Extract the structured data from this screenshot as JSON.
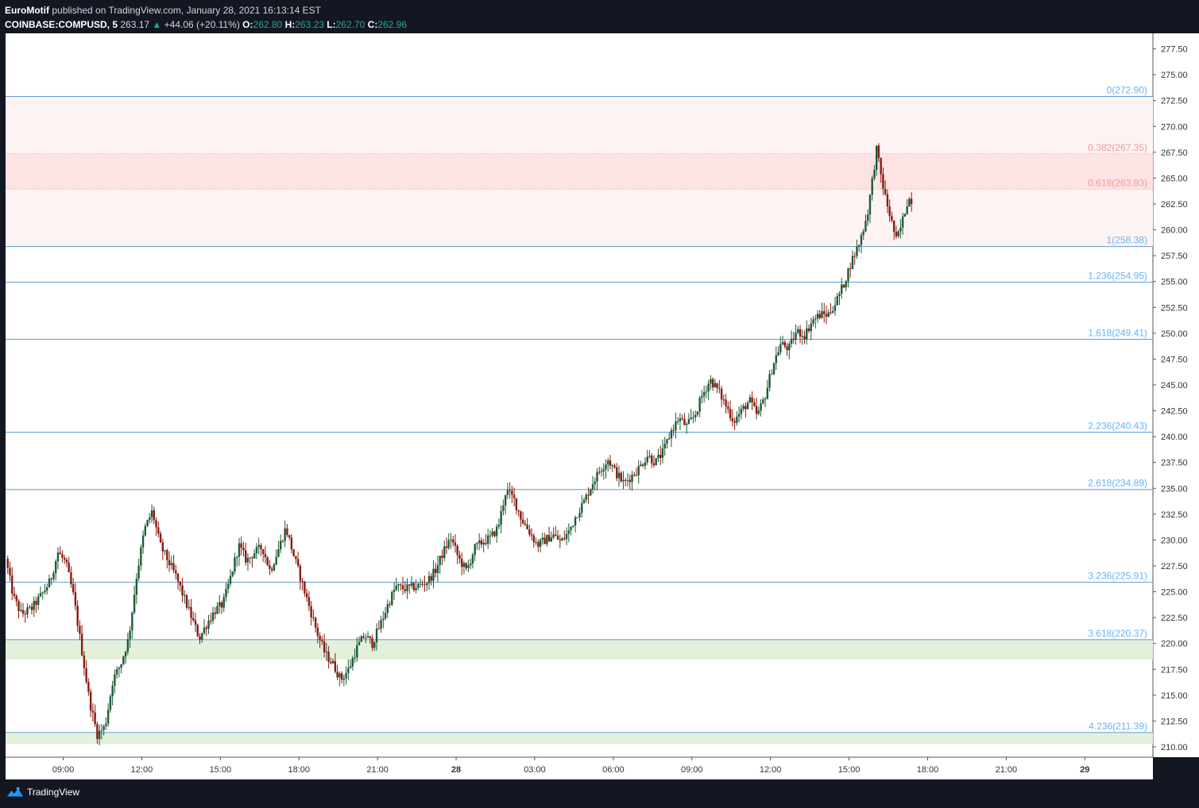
{
  "header": {
    "publisher": "EuroMotif",
    "published_text": "published on TradingView.com, January 28, 2021 16:13:14 EST",
    "symbol": "COINBASE:COMPUSD, 5",
    "last": "263.17",
    "change": "+44.06 (+20.11%)",
    "o_label": "O:",
    "o_value": "262.80",
    "h_label": "H:",
    "h_value": "263.23",
    "l_label": "L:",
    "l_value": "262.70",
    "c_label": "C:",
    "c_value": "262.96"
  },
  "footer": {
    "brand": "TradingView"
  },
  "colors": {
    "background": "#131722",
    "plot": "#ffffff",
    "fib_line": "#5b9bd5",
    "fib_label": "#64b5f6",
    "golden_label": "#ef9a9a",
    "golden_zone": "#fde3e3",
    "red_zone": "#fef3f3",
    "green_zone": "#e3f0dc",
    "candle_up": "#1e5a35",
    "candle_down": "#8b1a10"
  },
  "chart_data": {
    "type": "candlestick",
    "y_range": [
      209,
      279
    ],
    "y_ticks": [
      "277.50",
      "275.00",
      "272.50",
      "270.00",
      "267.50",
      "265.00",
      "262.50",
      "260.00",
      "257.50",
      "255.00",
      "252.50",
      "250.00",
      "247.50",
      "245.00",
      "242.50",
      "240.00",
      "237.50",
      "235.00",
      "232.50",
      "230.00",
      "227.50",
      "225.00",
      "222.50",
      "220.00",
      "217.50",
      "215.00",
      "212.50",
      "210.00"
    ],
    "x_ticks": [
      {
        "label": "09:00",
        "t": 9
      },
      {
        "label": "12:00",
        "t": 12
      },
      {
        "label": "15:00",
        "t": 15
      },
      {
        "label": "18:00",
        "t": 18
      },
      {
        "label": "21:00",
        "t": 21
      },
      {
        "label": "28",
        "t": 24
      },
      {
        "label": "03:00",
        "t": 27
      },
      {
        "label": "06:00",
        "t": 30
      },
      {
        "label": "09:00",
        "t": 33
      },
      {
        "label": "12:00",
        "t": 36
      },
      {
        "label": "15:00",
        "t": 39
      },
      {
        "label": "18:00",
        "t": 42
      },
      {
        "label": "21:00",
        "t": 45
      },
      {
        "label": "29",
        "t": 48
      }
    ],
    "x_range": [
      6.8,
      50.6
    ],
    "fib_levels": [
      {
        "label": "0(272.90)",
        "value": 272.9,
        "style": "solid",
        "kind": "blue"
      },
      {
        "label": "0.382(267.35)",
        "value": 267.35,
        "style": "dotted",
        "kind": "pink"
      },
      {
        "label": "0.618(263.93)",
        "value": 263.93,
        "style": "dotted",
        "kind": "pink"
      },
      {
        "label": "1(258.38)",
        "value": 258.38,
        "style": "solid",
        "kind": "blue"
      },
      {
        "label": "1.236(254.95)",
        "value": 254.95,
        "style": "solid",
        "kind": "blue"
      },
      {
        "label": "1.618(249.41)",
        "value": 249.41,
        "style": "solid",
        "kind": "blue"
      },
      {
        "label": "2.236(240.43)",
        "value": 240.43,
        "style": "solid",
        "kind": "blue"
      },
      {
        "label": "2.618(234.89)",
        "value": 234.89,
        "style": "solid",
        "kind": "blue"
      },
      {
        "label": "3.236(225.91)",
        "value": 225.91,
        "style": "solid",
        "kind": "blue"
      },
      {
        "label": "3.618(220.37)",
        "value": 220.37,
        "style": "solid",
        "kind": "blue"
      },
      {
        "label": "4.236(211.39)",
        "value": 211.39,
        "style": "solid",
        "kind": "blue"
      }
    ],
    "zones": [
      {
        "from": 258.38,
        "to": 272.9,
        "kind": "red_zone"
      },
      {
        "from": 263.93,
        "to": 267.35,
        "kind": "golden_zone"
      },
      {
        "from": 218.45,
        "to": 220.37,
        "kind": "green_zone"
      },
      {
        "from": 210.3,
        "to": 211.39,
        "kind": "green_zone"
      }
    ],
    "price_path": [
      [
        6.8,
        228.2
      ],
      [
        7.1,
        224.5
      ],
      [
        7.4,
        222.8
      ],
      [
        7.8,
        223.4
      ],
      [
        8.2,
        224.8
      ],
      [
        8.5,
        226.0
      ],
      [
        8.8,
        228.8
      ],
      [
        9.1,
        227.8
      ],
      [
        9.4,
        224.5
      ],
      [
        9.7,
        219.5
      ],
      [
        10.0,
        214.5
      ],
      [
        10.3,
        211.2
      ],
      [
        10.6,
        212.0
      ],
      [
        10.9,
        216.5
      ],
      [
        11.2,
        218.0
      ],
      [
        11.5,
        220.5
      ],
      [
        11.8,
        226.5
      ],
      [
        12.1,
        231.0
      ],
      [
        12.4,
        232.8
      ],
      [
        12.7,
        229.5
      ],
      [
        13.0,
        228.0
      ],
      [
        13.3,
        226.5
      ],
      [
        13.6,
        224.5
      ],
      [
        13.9,
        222.5
      ],
      [
        14.2,
        220.5
      ],
      [
        14.5,
        222.0
      ],
      [
        14.8,
        223.2
      ],
      [
        15.1,
        223.8
      ],
      [
        15.4,
        226.5
      ],
      [
        15.7,
        229.5
      ],
      [
        16.0,
        228.0
      ],
      [
        16.3,
        228.8
      ],
      [
        16.6,
        229.3
      ],
      [
        16.9,
        227.0
      ],
      [
        17.2,
        229.0
      ],
      [
        17.5,
        231.2
      ],
      [
        17.8,
        228.5
      ],
      [
        18.1,
        226.0
      ],
      [
        18.4,
        223.5
      ],
      [
        18.7,
        221.0
      ],
      [
        19.0,
        219.0
      ],
      [
        19.3,
        218.0
      ],
      [
        19.6,
        216.5
      ],
      [
        19.9,
        217.5
      ],
      [
        20.2,
        219.5
      ],
      [
        20.5,
        220.8
      ],
      [
        20.8,
        220.0
      ],
      [
        21.1,
        221.8
      ],
      [
        21.4,
        223.8
      ],
      [
        21.7,
        225.5
      ],
      [
        22.0,
        225.3
      ],
      [
        22.3,
        225.4
      ],
      [
        22.6,
        225.6
      ],
      [
        22.9,
        226.0
      ],
      [
        23.2,
        227.0
      ],
      [
        23.5,
        228.8
      ],
      [
        23.8,
        230.2
      ],
      [
        24.1,
        228.2
      ],
      [
        24.4,
        227.0
      ],
      [
        24.7,
        229.2
      ],
      [
        25.0,
        229.8
      ],
      [
        25.3,
        230.2
      ],
      [
        25.6,
        231.2
      ],
      [
        25.9,
        234.8
      ],
      [
        26.2,
        234.0
      ],
      [
        26.5,
        232.0
      ],
      [
        26.8,
        230.8
      ],
      [
        27.1,
        229.5
      ],
      [
        27.4,
        230.0
      ],
      [
        27.7,
        230.5
      ],
      [
        28.0,
        229.8
      ],
      [
        28.3,
        230.8
      ],
      [
        28.6,
        232.5
      ],
      [
        28.9,
        233.8
      ],
      [
        29.2,
        235.5
      ],
      [
        29.5,
        236.8
      ],
      [
        29.8,
        237.8
      ],
      [
        30.1,
        236.5
      ],
      [
        30.4,
        235.5
      ],
      [
        30.7,
        236.2
      ],
      [
        31.0,
        237.0
      ],
      [
        31.3,
        238.2
      ],
      [
        31.6,
        237.5
      ],
      [
        31.9,
        238.5
      ],
      [
        32.2,
        240.5
      ],
      [
        32.5,
        241.8
      ],
      [
        32.8,
        241.0
      ],
      [
        33.1,
        242.0
      ],
      [
        33.4,
        244.0
      ],
      [
        33.7,
        245.5
      ],
      [
        34.0,
        244.5
      ],
      [
        34.3,
        243.0
      ],
      [
        34.6,
        241.5
      ],
      [
        34.9,
        242.5
      ],
      [
        35.2,
        243.5
      ],
      [
        35.5,
        242.0
      ],
      [
        35.8,
        244.0
      ],
      [
        36.1,
        247.0
      ],
      [
        36.4,
        249.0
      ],
      [
        36.7,
        248.5
      ],
      [
        37.0,
        250.2
      ],
      [
        37.3,
        249.8
      ],
      [
        37.6,
        251.2
      ],
      [
        37.9,
        251.8
      ],
      [
        38.2,
        251.8
      ],
      [
        38.5,
        253.0
      ],
      [
        38.8,
        254.8
      ],
      [
        39.1,
        257.0
      ],
      [
        39.4,
        258.8
      ],
      [
        39.7,
        261.5
      ],
      [
        39.9,
        265.0
      ],
      [
        40.05,
        267.8
      ],
      [
        40.2,
        265.5
      ],
      [
        40.35,
        263.5
      ],
      [
        40.5,
        262.0
      ],
      [
        40.65,
        260.5
      ],
      [
        40.8,
        259.0
      ],
      [
        40.95,
        260.0
      ],
      [
        41.1,
        261.5
      ],
      [
        41.25,
        263.0
      ],
      [
        41.4,
        262.9
      ]
    ]
  }
}
